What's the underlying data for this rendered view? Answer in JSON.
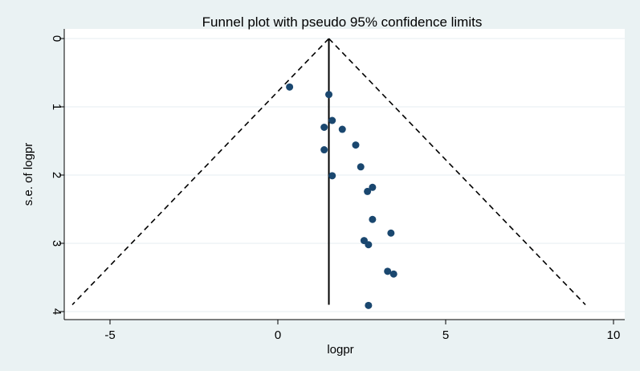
{
  "chart_data": {
    "type": "scatter",
    "title": "Funnel plot with pseudo 95% confidence limits",
    "xlabel": "logpr",
    "ylabel": "s.e. of logpr",
    "xlim": [
      -6.5,
      10
    ],
    "ylim": [
      0,
      4.1
    ],
    "y_reversed": true,
    "x_ticks": [
      -5,
      0,
      5,
      10
    ],
    "y_ticks": [
      0,
      1,
      2,
      3,
      4
    ],
    "grid": "horizontal",
    "legend": "none",
    "pooled_estimate": 1.52,
    "funnel_bottom_se": 3.9,
    "points": [
      {
        "x": 0.35,
        "y": 0.71
      },
      {
        "x": 1.52,
        "y": 0.82
      },
      {
        "x": 1.62,
        "y": 1.2
      },
      {
        "x": 1.38,
        "y": 1.3
      },
      {
        "x": 1.92,
        "y": 1.33
      },
      {
        "x": 2.32,
        "y": 1.56
      },
      {
        "x": 1.38,
        "y": 1.63
      },
      {
        "x": 2.47,
        "y": 1.88
      },
      {
        "x": 1.62,
        "y": 2.01
      },
      {
        "x": 2.82,
        "y": 2.18
      },
      {
        "x": 2.67,
        "y": 2.24
      },
      {
        "x": 2.82,
        "y": 2.65
      },
      {
        "x": 3.37,
        "y": 2.85
      },
      {
        "x": 2.57,
        "y": 2.96
      },
      {
        "x": 2.7,
        "y": 3.02
      },
      {
        "x": 3.27,
        "y": 3.41
      },
      {
        "x": 3.45,
        "y": 3.45
      },
      {
        "x": 2.7,
        "y": 3.91
      }
    ],
    "colors": {
      "background": "#eaf2f3",
      "plot_area": "#ffffff",
      "grid": "#e6eef0",
      "point": "#1a476f",
      "line": "#000000"
    }
  }
}
